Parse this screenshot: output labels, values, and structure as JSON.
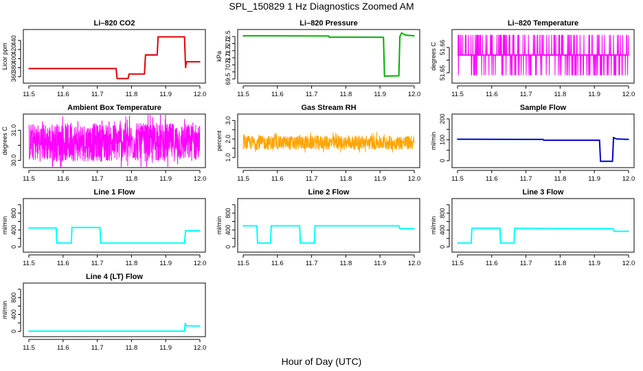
{
  "figure": {
    "title": "SPL_150829  1 Hz Diagnostics Zoomed AM",
    "xlabel": "Hour of Day (UTC)"
  },
  "chart_data": [
    {
      "type": "line",
      "title": "Li–820 CO2",
      "ylabel": "Licor ppm",
      "color": "#e00000",
      "xlim": [
        11.5,
        12.0
      ],
      "ylim": [
        352,
        458
      ],
      "xticks": [
        11.5,
        11.6,
        11.7,
        11.8,
        11.9,
        12.0
      ],
      "xtick_labels": [
        "11.5",
        "11.6",
        "11.7",
        "11.8",
        "11.9",
        "12.0"
      ],
      "yticks": [
        360,
        380,
        400,
        420,
        440
      ],
      "ytick_labels": [
        "360",
        "380",
        "400",
        "420",
        "440"
      ],
      "points": [
        [
          11.5,
          378
        ],
        [
          11.755,
          378
        ],
        [
          11.758,
          356
        ],
        [
          11.79,
          356
        ],
        [
          11.793,
          366
        ],
        [
          11.838,
          366
        ],
        [
          11.841,
          408
        ],
        [
          11.875,
          408
        ],
        [
          11.878,
          448
        ],
        [
          11.955,
          448
        ],
        [
          11.958,
          380
        ],
        [
          11.961,
          393
        ],
        [
          12.0,
          393
        ]
      ]
    },
    {
      "type": "line",
      "title": "Li–820 Pressure",
      "ylabel": "kPa",
      "color": "#00b000",
      "xlim": [
        11.5,
        12.0
      ],
      "ylim": [
        69.4,
        72.8
      ],
      "xticks": [
        11.5,
        11.6,
        11.7,
        11.8,
        11.9,
        12.0
      ],
      "xtick_labels": [
        "11.5",
        "11.6",
        "11.7",
        "11.8",
        "11.9",
        "12.0"
      ],
      "yticks": [
        69.5,
        70.0,
        70.5,
        71.0,
        71.5,
        72.0,
        72.5
      ],
      "ytick_labels": [
        "69.5",
        "",
        "70.5",
        "71.0",
        "71.5",
        "72.0",
        "72.5"
      ],
      "points": [
        [
          11.5,
          72.55
        ],
        [
          11.75,
          72.54
        ],
        [
          11.751,
          72.46
        ],
        [
          11.91,
          72.45
        ],
        [
          11.913,
          69.7
        ],
        [
          11.955,
          69.72
        ],
        [
          11.958,
          72.5
        ],
        [
          11.963,
          72.75
        ],
        [
          11.975,
          72.6
        ],
        [
          12.0,
          72.55
        ]
      ]
    },
    {
      "type": "line",
      "title": "Li–820 Temperature",
      "ylabel": "degrees C",
      "color": "#ff00ff",
      "xlim": [
        11.5,
        12.0
      ],
      "ylim": [
        51.647,
        51.666
      ],
      "xticks": [
        11.5,
        11.6,
        11.7,
        11.8,
        11.9,
        12.0
      ],
      "xtick_labels": [
        "11.5",
        "11.6",
        "11.7",
        "11.8",
        "11.9",
        "12.0"
      ],
      "yticks": [
        51.65,
        51.655,
        51.66
      ],
      "ytick_labels": [
        "51.65",
        "",
        "51.66"
      ],
      "levels": [
        51.649,
        51.657,
        51.665
      ],
      "noise": {
        "base": 51.657,
        "density": 0.55
      }
    },
    {
      "type": "line",
      "title": "Ambient Box Temperature",
      "ylabel": "degrees C",
      "color": "#ff00ff",
      "xlim": [
        11.5,
        12.0
      ],
      "ylim": [
        29.85,
        31.45
      ],
      "xticks": [
        11.5,
        11.6,
        11.7,
        11.8,
        11.9,
        12.0
      ],
      "xtick_labels": [
        "11.5",
        "11.6",
        "11.7",
        "11.8",
        "11.9",
        "12.0"
      ],
      "yticks": [
        30.0,
        30.5,
        31.0
      ],
      "ytick_labels": [
        "30.0",
        "",
        "31.0"
      ],
      "noise": {
        "base": 30.6,
        "amp": 0.75
      }
    },
    {
      "type": "line",
      "title": "Gas Stream RH",
      "ylabel": "percent",
      "color": "#ffa500",
      "xlim": [
        11.5,
        12.0
      ],
      "ylim": [
        0.6,
        3.2
      ],
      "xticks": [
        11.5,
        11.6,
        11.7,
        11.8,
        11.9,
        12.0
      ],
      "xtick_labels": [
        "11.5",
        "11.6",
        "11.7",
        "11.8",
        "11.9",
        "12.0"
      ],
      "yticks": [
        1.0,
        1.5,
        2.0,
        2.5,
        3.0
      ],
      "ytick_labels": [
        "1.0",
        "",
        "2.0",
        "",
        "3.0"
      ],
      "noise": {
        "base": 1.8,
        "amp": 0.45
      }
    },
    {
      "type": "line",
      "title": "Sample Flow",
      "ylabel": "ml/min",
      "color": "#0000c8",
      "xlim": [
        11.5,
        12.0
      ],
      "ylim": [
        -20,
        210
      ],
      "xticks": [
        11.5,
        11.6,
        11.7,
        11.8,
        11.9,
        12.0
      ],
      "xtick_labels": [
        "11.5",
        "11.6",
        "11.7",
        "11.8",
        "11.9",
        "12.0"
      ],
      "yticks": [
        0,
        50,
        100,
        150,
        200
      ],
      "ytick_labels": [
        "0",
        "",
        "100",
        "",
        "200"
      ],
      "points": [
        [
          11.5,
          103
        ],
        [
          11.75,
          102
        ],
        [
          11.752,
          98
        ],
        [
          11.915,
          98
        ],
        [
          11.918,
          -3
        ],
        [
          11.953,
          -3
        ],
        [
          11.956,
          110
        ],
        [
          11.965,
          104
        ],
        [
          12.0,
          102
        ]
      ]
    },
    {
      "type": "line",
      "title": "Line 1 Flow",
      "ylabel": "ml/min",
      "color": "#00ffff",
      "xlim": [
        11.5,
        12.0
      ],
      "ylim": [
        -60,
        1080
      ],
      "xticks": [
        11.5,
        11.6,
        11.7,
        11.8,
        11.9,
        12.0
      ],
      "xtick_labels": [
        "11.5",
        "11.6",
        "11.7",
        "11.8",
        "11.9",
        "12.0"
      ],
      "yticks": [
        0,
        200,
        400,
        600,
        800,
        1000
      ],
      "ytick_labels": [
        "0",
        "",
        "400",
        "",
        "800",
        ""
      ],
      "points": [
        [
          11.5,
          450
        ],
        [
          11.58,
          450
        ],
        [
          11.582,
          90
        ],
        [
          11.624,
          90
        ],
        [
          11.626,
          460
        ],
        [
          11.708,
          460
        ],
        [
          11.71,
          90
        ],
        [
          11.955,
          90
        ],
        [
          11.958,
          380
        ],
        [
          12.0,
          380
        ]
      ]
    },
    {
      "type": "line",
      "title": "Line 2 Flow",
      "ylabel": "ml/min",
      "color": "#00ffff",
      "xlim": [
        11.5,
        12.0
      ],
      "ylim": [
        -60,
        1080
      ],
      "xticks": [
        11.5,
        11.6,
        11.7,
        11.8,
        11.9,
        12.0
      ],
      "xtick_labels": [
        "11.5",
        "11.6",
        "11.7",
        "11.8",
        "11.9",
        "12.0"
      ],
      "yticks": [
        0,
        200,
        400,
        600,
        800,
        1000
      ],
      "ytick_labels": [
        "0",
        "",
        "400",
        "",
        "800",
        ""
      ],
      "points": [
        [
          11.5,
          500
        ],
        [
          11.54,
          500
        ],
        [
          11.542,
          90
        ],
        [
          11.58,
          90
        ],
        [
          11.582,
          500
        ],
        [
          11.665,
          500
        ],
        [
          11.667,
          90
        ],
        [
          11.708,
          90
        ],
        [
          11.71,
          500
        ],
        [
          11.955,
          500
        ],
        [
          11.958,
          430
        ],
        [
          12.0,
          430
        ]
      ]
    },
    {
      "type": "line",
      "title": "Line 3 Flow",
      "ylabel": "ml/min",
      "color": "#00ffff",
      "xlim": [
        11.5,
        12.0
      ],
      "ylim": [
        -60,
        1080
      ],
      "xticks": [
        11.5,
        11.6,
        11.7,
        11.8,
        11.9,
        12.0
      ],
      "xtick_labels": [
        "11.5",
        "11.6",
        "11.7",
        "11.8",
        "11.9",
        "12.0"
      ],
      "yticks": [
        0,
        200,
        400,
        600,
        800,
        1000
      ],
      "ytick_labels": [
        "0",
        "",
        "400",
        "",
        "800",
        ""
      ],
      "points": [
        [
          11.5,
          90
        ],
        [
          11.54,
          90
        ],
        [
          11.542,
          440
        ],
        [
          11.624,
          440
        ],
        [
          11.626,
          90
        ],
        [
          11.665,
          90
        ],
        [
          11.667,
          440
        ],
        [
          11.955,
          430
        ],
        [
          11.958,
          370
        ],
        [
          12.0,
          370
        ]
      ]
    },
    {
      "type": "line",
      "title": "Line 4 (LT) Flow",
      "ylabel": "ml/min",
      "color": "#00ffff",
      "xlim": [
        11.5,
        12.0
      ],
      "ylim": [
        -60,
        1080
      ],
      "xticks": [
        11.5,
        11.6,
        11.7,
        11.8,
        11.9,
        12.0
      ],
      "xtick_labels": [
        "11.5",
        "11.6",
        "11.7",
        "11.8",
        "11.9",
        "12.0"
      ],
      "yticks": [
        0,
        200,
        400,
        600,
        800,
        1000
      ],
      "ytick_labels": [
        "0",
        "",
        "400",
        "",
        "800",
        ""
      ],
      "points": [
        [
          11.5,
          5
        ],
        [
          11.955,
          5
        ],
        [
          11.957,
          190
        ],
        [
          11.96,
          130
        ],
        [
          12.0,
          125
        ]
      ]
    }
  ]
}
